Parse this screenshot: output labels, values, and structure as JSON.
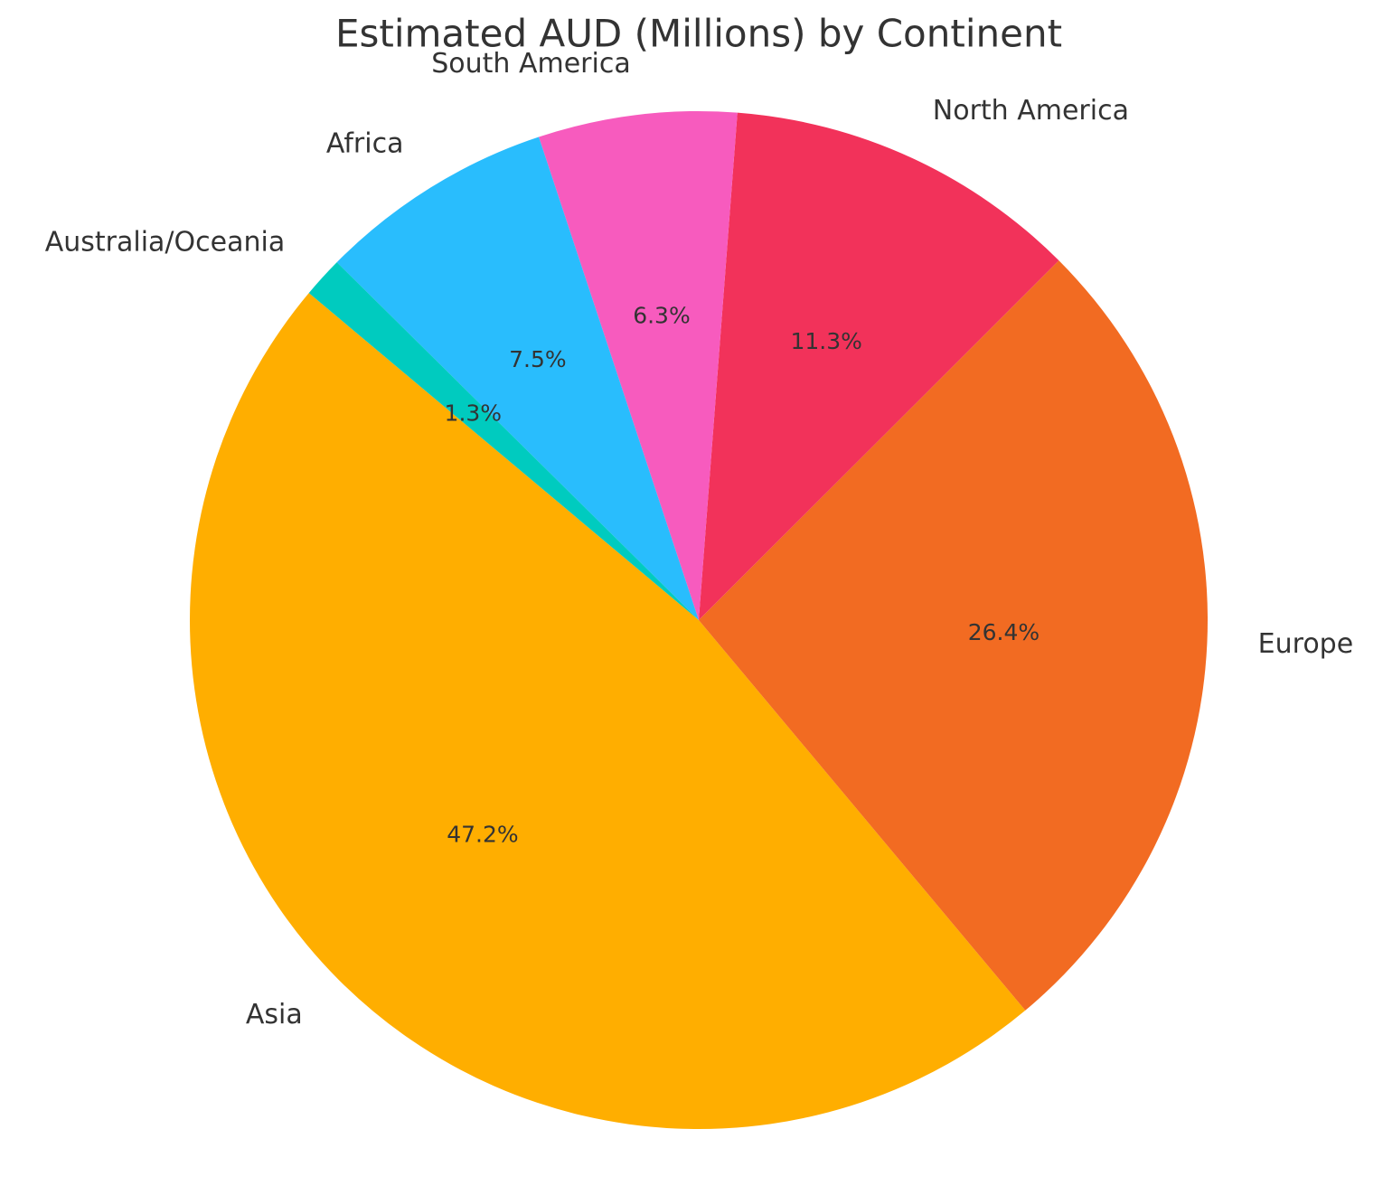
{
  "chart_data": {
    "type": "pie",
    "title": "Estimated AUD (Millions) by Continent",
    "categories": [
      "Asia",
      "Europe",
      "North America",
      "South America",
      "Africa",
      "Australia/Oceania"
    ],
    "values": [
      47.2,
      26.4,
      11.3,
      6.3,
      7.5,
      1.3
    ],
    "value_labels": [
      "47.2%",
      "26.4%",
      "11.3%",
      "6.3%",
      "7.5%",
      "1.3%"
    ],
    "colors": [
      "#ffae00",
      "#f26b22",
      "#f2325a",
      "#f75bbe",
      "#29bdfd",
      "#00cbbf"
    ]
  }
}
